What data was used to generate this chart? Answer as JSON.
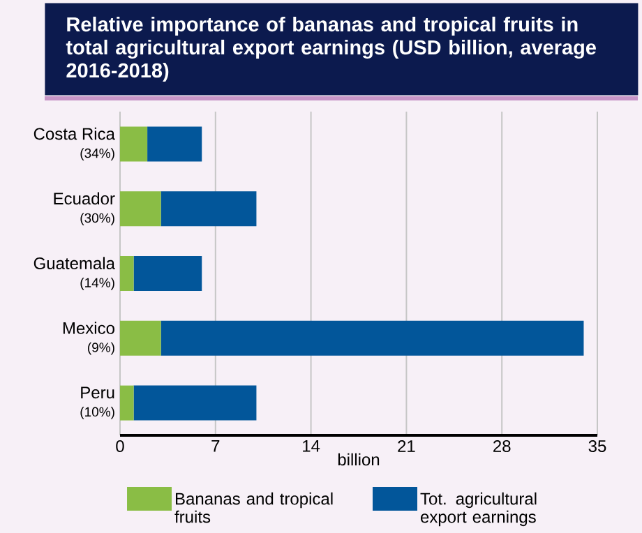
{
  "chart_data": {
    "type": "bar",
    "orientation": "horizontal",
    "stacked": true,
    "title": "Relative importance of bananas and tropical fruits in total agricultural export earnings (USD billion, average 2016-2018)",
    "xlabel": "billion",
    "categories": [
      "Costa Rica",
      "Ecuador",
      "Guatemala",
      "Mexico",
      "Peru"
    ],
    "annotations": [
      "(34%)",
      "(30%)",
      "(14%)",
      "(9%)",
      "(10%)"
    ],
    "series": [
      {
        "name": "Bananas and tropical fruits",
        "color": "#8abd45",
        "values": [
          2,
          3,
          1,
          3,
          1
        ]
      },
      {
        "name": "Tot. agricultural export earnings",
        "color": "#02569a",
        "values": [
          4,
          7,
          5,
          31,
          9
        ]
      }
    ],
    "xlim": [
      0,
      35
    ],
    "xticks": [
      0,
      7,
      14,
      21,
      28,
      35
    ],
    "grid": "x",
    "legend": "bottom"
  }
}
